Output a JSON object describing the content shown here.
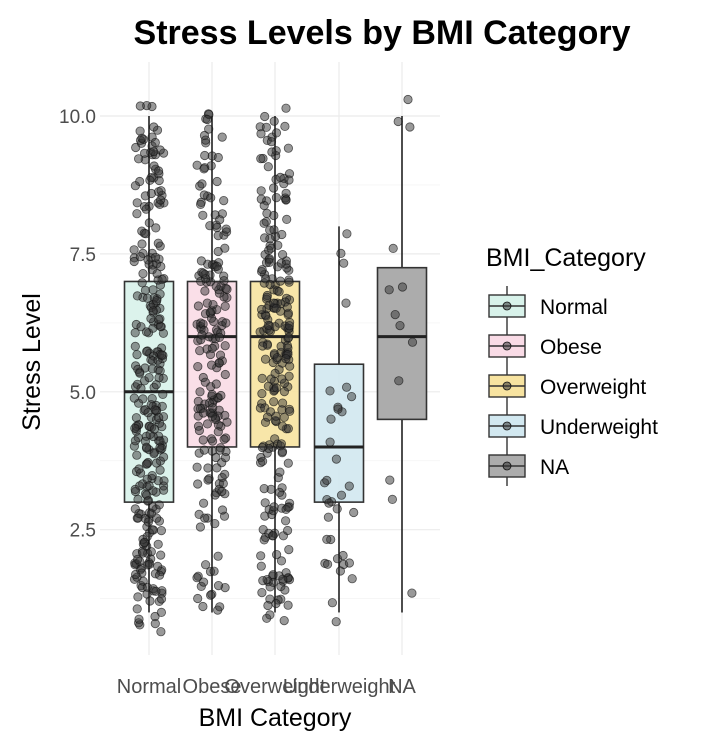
{
  "chart_data": {
    "type": "boxplot",
    "title": "Stress Levels by BMI Category",
    "xlabel": "BMI Category",
    "ylabel": "Stress Level",
    "ylim": [
      0.45,
      10.75
    ],
    "yticks": [
      2.5,
      5.0,
      7.5,
      10.0
    ],
    "ytick_labels": [
      "2.5",
      "5.0",
      "7.5",
      "10.0"
    ],
    "grid": true,
    "legend": {
      "title": "BMI_Category",
      "position": "right"
    },
    "categories": [
      "Normal",
      "Obese",
      "Overweight",
      "Underweight",
      "NA"
    ],
    "boxes": [
      {
        "name": "Normal",
        "color": "#d8f2ea",
        "q1": 3.0,
        "median": 5.0,
        "q3": 7.0,
        "whisker_low": 1.0,
        "whisker_high": 10.0,
        "n_points": 300
      },
      {
        "name": "Obese",
        "color": "#f9dbe6",
        "q1": 4.0,
        "median": 6.0,
        "q3": 7.0,
        "whisker_low": 1.0,
        "whisker_high": 10.0,
        "n_points": 200
      },
      {
        "name": "Overweight",
        "color": "#f7e3a0",
        "q1": 4.0,
        "median": 6.0,
        "q3": 7.0,
        "whisker_low": 1.0,
        "whisker_high": 10.0,
        "n_points": 250
      },
      {
        "name": "Underweight",
        "color": "#d2e8f0",
        "q1": 3.0,
        "median": 4.0,
        "q3": 5.5,
        "whisker_low": 1.0,
        "whisker_high": 8.0,
        "n_points": 35
      },
      {
        "name": "NA",
        "color": "#acacac",
        "q1": 4.5,
        "median": 6.0,
        "q3": 7.25,
        "whisker_low": 1.0,
        "whisker_high": 10.0,
        "n_points": 0
      }
    ],
    "na_points": [
      10.3,
      9.8,
      9.9,
      7.6,
      6.9,
      6.85,
      6.4,
      6.2,
      5.9,
      5.2,
      3.4,
      3.05,
      1.35
    ],
    "point_color": "#333333"
  }
}
